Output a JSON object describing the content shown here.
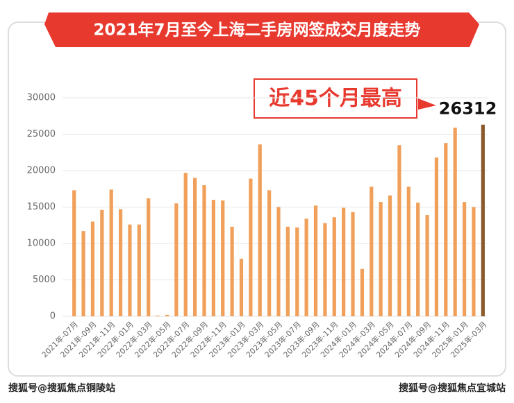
{
  "chart_data": {
    "type": "bar",
    "title": "2021年7月至今上海二手房网签成交月度走势",
    "annotation": "近45个月最高",
    "watermark_left": "搜狐号@搜狐焦点铜陵站",
    "watermark_right": "搜狐号@搜狐焦点宜城站",
    "categories": [
      "2021年-07月",
      null,
      "2021年-09月",
      null,
      "2021年-11月",
      null,
      "2022年-01月",
      null,
      "2022年-03月",
      null,
      "2022年-05月",
      null,
      "2022年-07月",
      null,
      "2022年-09月",
      null,
      "2022年-11月",
      null,
      "2023年-01月",
      null,
      "2023年-03月",
      null,
      "2023年-05月",
      null,
      "2023年-07月",
      null,
      "2023年-09月",
      null,
      "2023年-11月",
      null,
      "2024年-01月",
      null,
      "2024年-03月",
      null,
      "2024年-05月",
      null,
      "2024年-07月",
      null,
      "2024年-09月",
      null,
      "2024年-11月",
      null,
      "2025年-01月",
      null,
      "2025年-03月"
    ],
    "values": [
      17300,
      11700,
      13000,
      14600,
      17400,
      14700,
      12600,
      12600,
      16200,
      100,
      200,
      15500,
      19700,
      19000,
      18000,
      16000,
      15900,
      12300,
      7900,
      18900,
      23600,
      17300,
      15000,
      12300,
      12200,
      13400,
      15200,
      12800,
      13600,
      14900,
      14300,
      6500,
      17800,
      15700,
      16600,
      23500,
      17800,
      15600,
      13900,
      21800,
      23800,
      25900,
      15700,
      15000,
      26312
    ],
    "color": "#f0a05a",
    "highlight_color": "#8b5a2b",
    "highlight_index": 44,
    "ylim": [
      0,
      30000
    ],
    "yticks": [
      0,
      5000,
      10000,
      15000,
      20000,
      25000,
      30000
    ],
    "grid": true
  }
}
